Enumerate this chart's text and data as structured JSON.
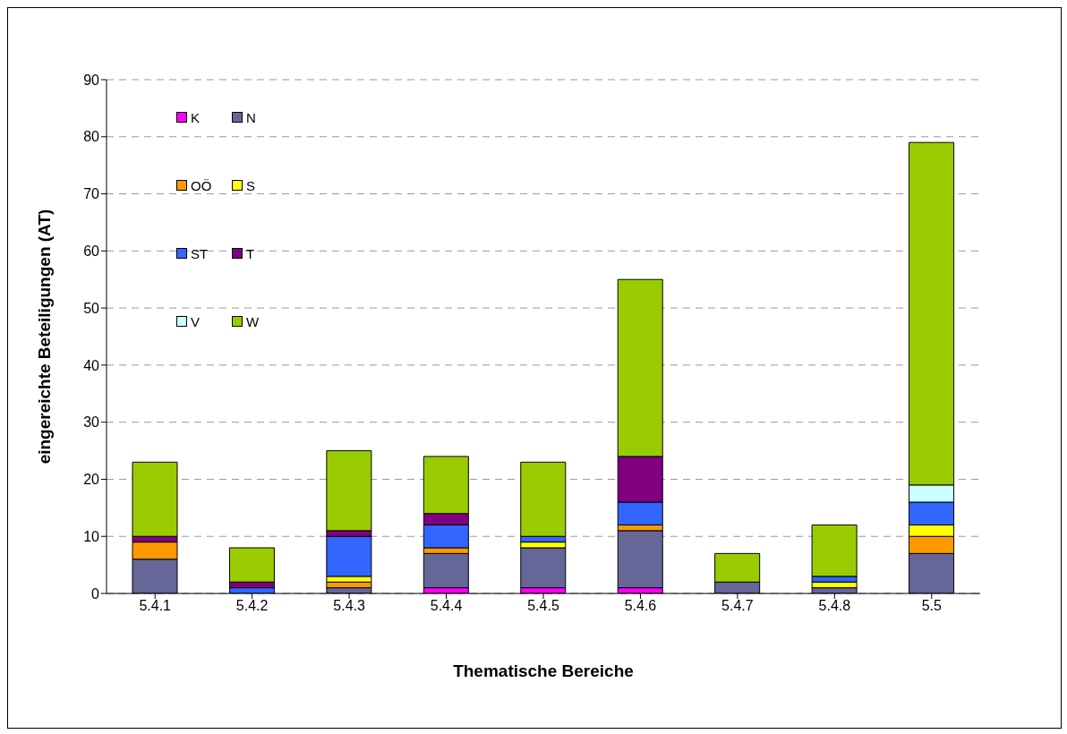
{
  "chart_data": {
    "type": "bar",
    "stacked": true,
    "xlabel": "Thematische Bereiche",
    "ylabel": "eingereichte Beteiligungen (AT)",
    "categories": [
      "5.4.1",
      "5.4.2",
      "5.4.3",
      "5.4.4",
      "5.4.5",
      "5.4.6",
      "5.4.7",
      "5.4.8",
      "5.5"
    ],
    "series": [
      {
        "name": "K",
        "color": "#ff00ff",
        "values": [
          null,
          null,
          null,
          1,
          1,
          1,
          null,
          null,
          null
        ]
      },
      {
        "name": "N",
        "color": "#666699",
        "values": [
          6,
          null,
          1,
          6,
          7,
          10,
          2,
          1,
          7
        ]
      },
      {
        "name": "OÖ",
        "color": "#ff9900",
        "values": [
          3,
          null,
          1,
          1,
          null,
          1,
          null,
          null,
          3
        ]
      },
      {
        "name": "S",
        "color": "#ffff00",
        "values": [
          null,
          null,
          1,
          null,
          1,
          null,
          null,
          1,
          2
        ]
      },
      {
        "name": "ST",
        "color": "#3366ff",
        "values": [
          null,
          1,
          7,
          4,
          1,
          4,
          null,
          1,
          4
        ]
      },
      {
        "name": "T",
        "color": "#800080",
        "values": [
          1,
          1,
          1,
          2,
          null,
          8,
          null,
          null,
          null
        ]
      },
      {
        "name": "V",
        "color": "#ccffff",
        "values": [
          null,
          null,
          null,
          null,
          null,
          null,
          null,
          null,
          3
        ]
      },
      {
        "name": "W",
        "color": "#99cc00",
        "values": [
          13,
          6,
          14,
          10,
          13,
          31,
          5,
          9,
          60
        ]
      }
    ],
    "ylim": [
      0,
      90
    ],
    "yticks": [
      0,
      10,
      20,
      30,
      40,
      50,
      60,
      70,
      80,
      90
    ],
    "grid": "y",
    "legend": "top left"
  }
}
